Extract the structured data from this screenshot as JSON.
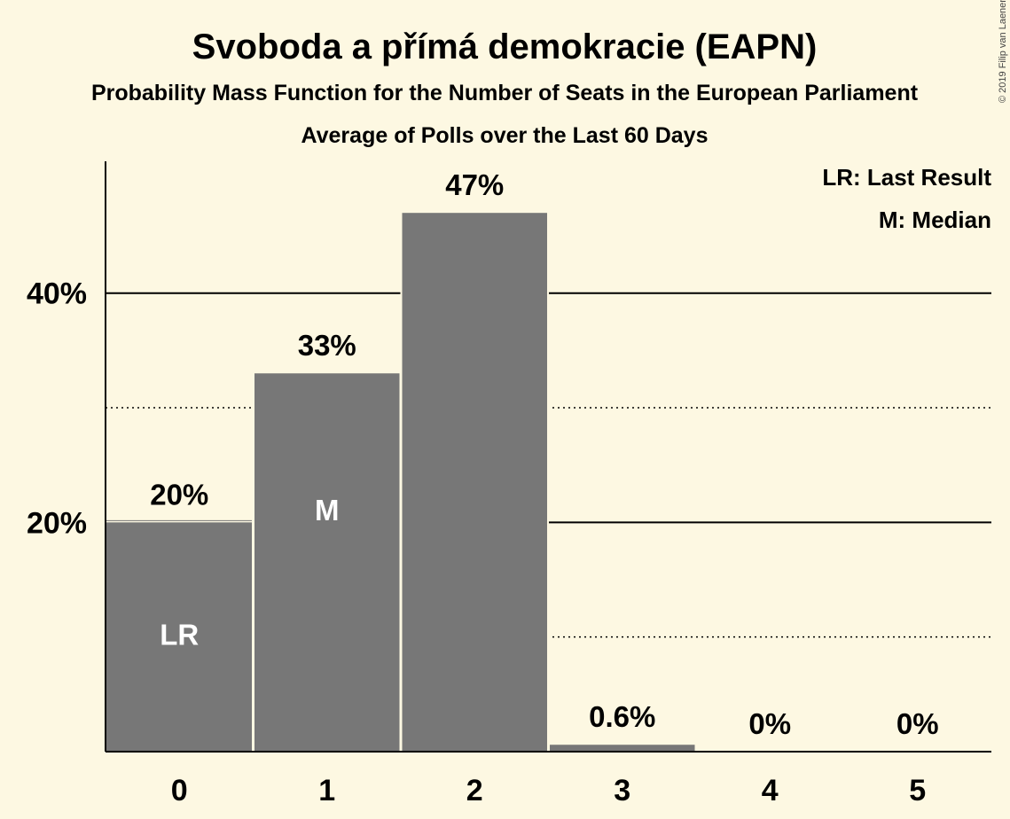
{
  "title": "Svoboda a přímá demokracie (EAPN)",
  "subtitle": "Probability Mass Function for the Number of Seats in the European Parliament",
  "subtitle2": "Average of Polls over the Last 60 Days",
  "copyright": "© 2019 Filip van Laenen",
  "legend": {
    "last_result": "LR: Last Result",
    "median": "M: Median"
  },
  "colors": {
    "background": "#fdf8e2",
    "bar": "#777777",
    "gridline": "#000000"
  },
  "chart_data": {
    "type": "bar",
    "title": "Svoboda a přímá demokracie (EAPN)",
    "xlabel": "",
    "ylabel": "",
    "categories": [
      "0",
      "1",
      "2",
      "3",
      "4",
      "5"
    ],
    "values": [
      20,
      33,
      47,
      0.6,
      0,
      0
    ],
    "value_labels": [
      "20%",
      "33%",
      "47%",
      "0.6%",
      "0%",
      "0%"
    ],
    "ylim": [
      0,
      51.5
    ],
    "yticks": [
      {
        "value": 20,
        "label": "20%"
      },
      {
        "value": 40,
        "label": "40%"
      }
    ],
    "minor_gridlines": [
      10,
      30
    ],
    "markers": [
      {
        "category": "0",
        "label": "LR"
      },
      {
        "category": "1",
        "label": "M"
      }
    ],
    "last_result_value": 20,
    "legend_position": "top-right",
    "grid": true
  }
}
